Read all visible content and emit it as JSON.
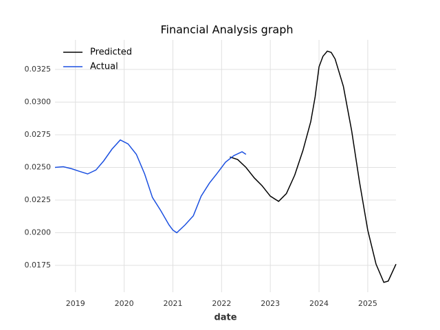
{
  "chart_data": {
    "type": "line",
    "title": "Financial Analysis graph",
    "x_label": "date",
    "xlim": [
      2018.58,
      2025.58
    ],
    "xticks": [
      2019,
      2020,
      2021,
      2022,
      2023,
      2024,
      2025
    ],
    "ylim": [
      0.01545,
      0.03476
    ],
    "yticks": [
      0.0175,
      {
        "value": 0.02,
        "label": "0.0200"
      },
      0.0225,
      {
        "value": 0.025,
        "label": "0.0250"
      },
      0.0275,
      {
        "value": 0.03,
        "label": "0.0300"
      },
      0.0325
    ],
    "grid": true,
    "legend": "upper left",
    "series": [
      {
        "name": "Predicted",
        "color": "#000000",
        "x": [
          2022.17,
          2022.33,
          2022.5,
          2022.67,
          2022.83,
          2023.0,
          2023.17,
          2023.33,
          2023.5,
          2023.67,
          2023.83,
          2023.92,
          2024.0,
          2024.08,
          2024.17,
          2024.25,
          2024.33,
          2024.5,
          2024.67,
          2024.83,
          2025.0,
          2025.17,
          2025.33,
          2025.42,
          2025.58
        ],
        "values": [
          0.0258,
          0.0256,
          0.025,
          0.0242,
          0.0236,
          0.0228,
          0.0224,
          0.023,
          0.0244,
          0.0263,
          0.0285,
          0.0304,
          0.0327,
          0.0335,
          0.0339,
          0.0338,
          0.0333,
          0.0312,
          0.0278,
          0.0239,
          0.0202,
          0.0176,
          0.0162,
          0.0163,
          0.0176
        ]
      },
      {
        "name": "Actual",
        "color": "#1a4fe0",
        "x": [
          2018.58,
          2018.75,
          2018.92,
          2019.08,
          2019.25,
          2019.42,
          2019.58,
          2019.75,
          2019.92,
          2020.08,
          2020.25,
          2020.42,
          2020.58,
          2020.75,
          2020.92,
          2021.0,
          2021.08,
          2021.25,
          2021.42,
          2021.58,
          2021.75,
          2021.92,
          2022.08,
          2022.25,
          2022.42,
          2022.5
        ],
        "values": [
          0.025,
          0.02505,
          0.0249,
          0.0247,
          0.0245,
          0.0248,
          0.0255,
          0.0264,
          0.0271,
          0.0268,
          0.026,
          0.0245,
          0.0227,
          0.0217,
          0.0206,
          0.0202,
          0.02,
          0.0206,
          0.0213,
          0.0228,
          0.0238,
          0.0246,
          0.0254,
          0.0259,
          0.0262,
          0.026
        ]
      }
    ]
  }
}
